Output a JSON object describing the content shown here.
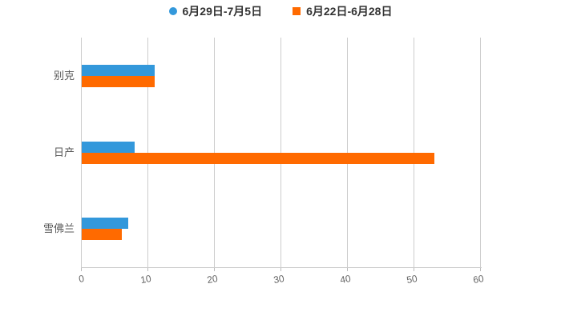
{
  "chart_data": {
    "type": "bar",
    "orientation": "horizontal",
    "title": "",
    "xlabel": "",
    "ylabel": "",
    "categories": [
      "别克",
      "日产",
      "雪佛兰"
    ],
    "series": [
      {
        "name": "6月29日-7月5日",
        "color": "#3398db",
        "marker": "circle",
        "values": [
          11,
          8,
          7
        ]
      },
      {
        "name": "6月22日-6月28日",
        "color": "#ff6a00",
        "marker": "square",
        "values": [
          11,
          53,
          6
        ]
      }
    ],
    "xlim": [
      0,
      60
    ],
    "xticks": [
      0,
      10,
      20,
      30,
      40,
      50,
      60
    ],
    "grid": "vertical",
    "legend_position": "top-center",
    "colors": {
      "background": "#ffffff",
      "grid_line": "#cccccc",
      "axis_line": "#cccccc",
      "tick_label": "#666666",
      "category_label": "#595959",
      "legend_text": "#333333"
    }
  }
}
